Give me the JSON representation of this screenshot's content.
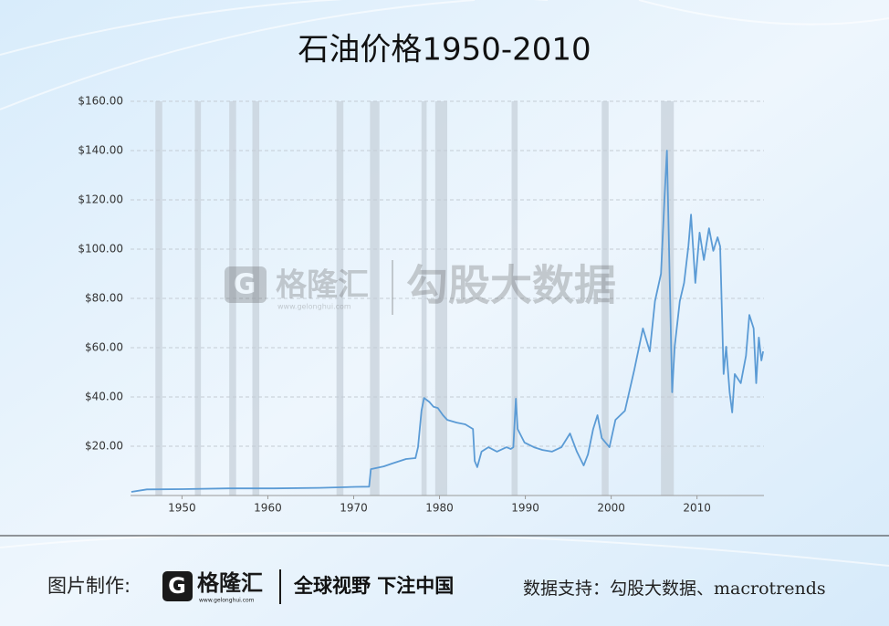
{
  "chart_data": {
    "type": "line",
    "title": "石油价格1950-2010",
    "x": [
      1944.1,
      1945.9,
      1950.1,
      1955.4,
      1960.7,
      1966.0,
      1970.3,
      1971.8,
      1972.0,
      1973.5,
      1974.5,
      1976.1,
      1977.2,
      1977.5,
      1977.9,
      1978.2,
      1978.8,
      1979.3,
      1979.8,
      1980.4,
      1980.9,
      1982.0,
      1983.0,
      1983.9,
      1984.1,
      1984.4,
      1984.9,
      1985.7,
      1986.7,
      1987.8,
      1988.3,
      1988.6,
      1988.9,
      1989.1,
      1989.9,
      1991.0,
      1992.0,
      1993.1,
      1994.2,
      1995.2,
      1996.0,
      1996.8,
      1997.3,
      1997.9,
      1998.4,
      1998.9,
      1999.8,
      2000.5,
      2001.6,
      2002.7,
      2003.7,
      2004.5,
      2005.1,
      2005.8,
      2006.2,
      2006.5,
      2006.8,
      2007.1,
      2007.4,
      2008.0,
      2008.5,
      2009.0,
      2009.3,
      2009.8,
      2010.3,
      2010.8,
      2011.4,
      2011.9,
      2012.4,
      2012.7,
      2013.1,
      2013.4,
      2013.8,
      2014.1,
      2014.4,
      2015.1,
      2015.7,
      2016.1,
      2016.6,
      2016.9,
      2017.2,
      2017.5,
      2017.7
    ],
    "values": [
      1.5,
      2.5,
      2.6,
      2.9,
      2.9,
      3.1,
      3.5,
      3.6,
      10.7,
      11.8,
      13,
      14.8,
      15.2,
      19.6,
      34.4,
      39.6,
      38,
      36,
      35.5,
      32.6,
      30.7,
      29.6,
      28.9,
      27,
      14,
      11.5,
      17.8,
      19.6,
      17.8,
      19.6,
      18.9,
      19.6,
      39.3,
      27,
      21.5,
      19.6,
      18.5,
      17.8,
      19.6,
      25.2,
      17.8,
      12.2,
      16.7,
      27,
      32.6,
      23.3,
      19.6,
      30.7,
      34.4,
      51.1,
      67.8,
      58.5,
      78.9,
      90,
      119.6,
      140,
      90,
      41.9,
      60.4,
      78.9,
      86.3,
      101.1,
      114,
      86.3,
      106.7,
      95.6,
      108.5,
      99.3,
      104.8,
      101.1,
      49.3,
      60.4,
      41.9,
      33.7,
      49.3,
      45.6,
      56.7,
      73.3,
      67.8,
      45.6,
      64.1,
      54.8,
      58.5
    ],
    "color": "#5b9bd5",
    "recessions": [
      [
        1946.9,
        1947.7
      ],
      [
        1951.5,
        1952.2
      ],
      [
        1955.5,
        1956.3
      ],
      [
        1958.2,
        1959.0
      ],
      [
        1968.0,
        1968.8
      ],
      [
        1971.9,
        1973.0
      ],
      [
        1977.9,
        1978.5
      ],
      [
        1979.5,
        1980.9
      ],
      [
        1988.4,
        1989.1
      ],
      [
        1998.9,
        1999.7
      ],
      [
        2005.8,
        2007.3
      ]
    ],
    "recession_color": "#c9d3dc",
    "xlim": [
      1944,
      2017.8
    ],
    "ylim": [
      0,
      160
    ],
    "xticks": [
      1950,
      1960,
      1970,
      1980,
      1990,
      2000,
      2010
    ],
    "yticks": [
      {
        "value": 20,
        "label": "$20.00"
      },
      {
        "value": 40,
        "label": "$40.00"
      },
      {
        "value": 60,
        "label": "$60.00"
      },
      {
        "value": 80,
        "label": "$80.00"
      },
      {
        "value": 100,
        "label": "$100.00"
      },
      {
        "value": 120,
        "label": "$120.00"
      },
      {
        "value": 140,
        "label": "$140.00"
      },
      {
        "value": 160,
        "label": "$160.00"
      }
    ],
    "grid": true
  },
  "watermark": {
    "brand": "格隆汇",
    "url": "www.gelonghui.com",
    "product": "勾股大数据"
  },
  "footer": {
    "made_by": "图片制作:",
    "brand": "格隆汇",
    "url": "www.gelonghui.com",
    "slogan": "全球视野 下注中国",
    "source": "数据支持：勾股大数据、macrotrends"
  }
}
